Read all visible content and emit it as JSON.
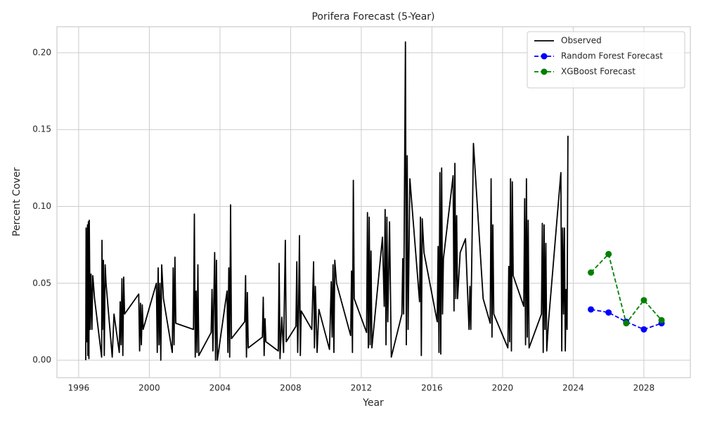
{
  "chart_data": {
    "type": "line",
    "title": "Porifera Forecast (5-Year)",
    "x_label": "Year",
    "y_label": "Percent Cover",
    "xlim": [
      1994.77,
      2030.63
    ],
    "xticks": [
      1996,
      2000,
      2004,
      2008,
      2012,
      2016,
      2020,
      2024,
      2028
    ],
    "ylim": [
      -0.0114,
      0.2169
    ],
    "yticks": [
      {
        "value": 0,
        "label": "0.00"
      },
      {
        "value": 0.05,
        "label": "0.05"
      },
      {
        "value": 0.1,
        "label": "0.10"
      },
      {
        "value": 0.15,
        "label": "0.15"
      },
      {
        "value": 0.2,
        "label": "0.20"
      }
    ],
    "grid": true,
    "legend": "upper right",
    "series": [
      {
        "name": "Observed",
        "color": "#000000",
        "style": "solid",
        "markers": false,
        "x": [
          1996.4,
          1996.42,
          1996.45,
          1996.5,
          1996.52,
          1996.55,
          1996.58,
          1996.6,
          1996.65,
          1996.7,
          1996.75,
          1996.8,
          1996.9,
          1997.3,
          1997.32,
          1997.35,
          1997.4,
          1997.45,
          1997.5,
          1997.55,
          1997.9,
          1998.0,
          1998.3,
          1998.35,
          1998.4,
          1998.45,
          1998.5,
          1998.55,
          1998.6,
          1999.4,
          1999.45,
          1999.5,
          1999.55,
          1999.6,
          1999.65,
          2000.4,
          2000.45,
          2000.5,
          2000.55,
          2000.6,
          2000.65,
          2000.7,
          2000.8,
          2001.3,
          2001.35,
          2001.4,
          2001.45,
          2001.5,
          2002.5,
          2002.55,
          2002.6,
          2002.65,
          2002.7,
          2002.75,
          2002.8,
          2003.5,
          2003.55,
          2003.6,
          2003.7,
          2003.75,
          2003.8,
          2003.85,
          2004.4,
          2004.45,
          2004.5,
          2004.55,
          2004.6,
          2004.65,
          2005.4,
          2005.45,
          2005.5,
          2005.55,
          2005.6,
          2006.4,
          2006.45,
          2006.5,
          2006.55,
          2006.6,
          2007.3,
          2007.35,
          2007.4,
          2007.5,
          2007.6,
          2007.7,
          2007.75,
          2008.3,
          2008.35,
          2008.4,
          2008.45,
          2008.5,
          2008.55,
          2008.6,
          2009.2,
          2009.3,
          2009.35,
          2009.4,
          2009.5,
          2009.6,
          2010.2,
          2010.3,
          2010.35,
          2010.4,
          2010.45,
          2010.5,
          2010.6,
          2011.4,
          2011.45,
          2011.5,
          2011.55,
          2011.6,
          2012.3,
          2012.35,
          2012.4,
          2012.45,
          2012.5,
          2012.55,
          2012.6,
          2013.2,
          2013.3,
          2013.35,
          2013.4,
          2013.45,
          2013.5,
          2013.6,
          2013.7,
          2014.3,
          2014.35,
          2014.4,
          2014.5,
          2014.55,
          2014.6,
          2014.65,
          2014.75,
          2015.3,
          2015.35,
          2015.4,
          2015.45,
          2015.55,
          2016.3,
          2016.35,
          2016.4,
          2016.45,
          2016.5,
          2016.55,
          2016.6,
          2016.65,
          2017.2,
          2017.25,
          2017.3,
          2017.35,
          2017.4,
          2017.45,
          2017.6,
          2017.9,
          2018.1,
          2018.15,
          2018.2,
          2018.35,
          2018.9,
          2019.3,
          2019.35,
          2019.4,
          2019.45,
          2019.5,
          2020.3,
          2020.35,
          2020.4,
          2020.45,
          2020.5,
          2020.55,
          2020.6,
          2021.2,
          2021.25,
          2021.3,
          2021.35,
          2021.4,
          2021.45,
          2021.5,
          2022.2,
          2022.25,
          2022.3,
          2022.35,
          2022.4,
          2022.45,
          2022.5,
          2022.6,
          2023.3,
          2023.35,
          2023.4,
          2023.45,
          2023.5,
          2023.55,
          2023.6,
          2023.65,
          2023.7
        ],
        "values": [
          0.0,
          0.086,
          0.012,
          0.088,
          0.003,
          0.09,
          0.001,
          0.091,
          0.02,
          0.056,
          0.02,
          0.055,
          0.04,
          0.002,
          0.078,
          0.02,
          0.065,
          0.003,
          0.062,
          0.05,
          0.002,
          0.03,
          0.005,
          0.038,
          0.01,
          0.053,
          0.003,
          0.054,
          0.03,
          0.043,
          0.006,
          0.037,
          0.01,
          0.036,
          0.02,
          0.05,
          0.005,
          0.06,
          0.01,
          0.05,
          0.0,
          0.062,
          0.04,
          0.005,
          0.06,
          0.01,
          0.067,
          0.024,
          0.02,
          0.095,
          0.002,
          0.045,
          0.005,
          0.062,
          0.003,
          0.018,
          0.046,
          0.006,
          0.07,
          0.0,
          0.065,
          0.0,
          0.045,
          0.005,
          0.06,
          0.002,
          0.101,
          0.014,
          0.025,
          0.055,
          0.002,
          0.044,
          0.008,
          0.015,
          0.041,
          0.003,
          0.027,
          0.012,
          0.006,
          0.063,
          0.001,
          0.028,
          0.005,
          0.078,
          0.012,
          0.022,
          0.064,
          0.005,
          0.032,
          0.081,
          0.003,
          0.032,
          0.02,
          0.064,
          0.008,
          0.048,
          0.005,
          0.033,
          0.007,
          0.051,
          0.015,
          0.062,
          0.005,
          0.065,
          0.05,
          0.016,
          0.058,
          0.005,
          0.117,
          0.04,
          0.018,
          0.096,
          0.008,
          0.093,
          0.01,
          0.071,
          0.008,
          0.08,
          0.035,
          0.098,
          0.01,
          0.093,
          0.025,
          0.09,
          0.002,
          0.03,
          0.066,
          0.03,
          0.207,
          0.01,
          0.133,
          0.02,
          0.118,
          0.038,
          0.093,
          0.003,
          0.092,
          0.07,
          0.025,
          0.074,
          0.005,
          0.122,
          0.004,
          0.125,
          0.03,
          0.066,
          0.12,
          0.032,
          0.128,
          0.04,
          0.094,
          0.04,
          0.07,
          0.079,
          0.02,
          0.048,
          0.02,
          0.141,
          0.04,
          0.024,
          0.118,
          0.015,
          0.088,
          0.03,
          0.008,
          0.061,
          0.012,
          0.118,
          0.006,
          0.116,
          0.055,
          0.035,
          0.105,
          0.01,
          0.118,
          0.015,
          0.091,
          0.008,
          0.03,
          0.089,
          0.005,
          0.088,
          0.02,
          0.076,
          0.006,
          0.025,
          0.122,
          0.006,
          0.086,
          0.03,
          0.086,
          0.006,
          0.046,
          0.02,
          0.146
        ]
      },
      {
        "name": "Random Forest Forecast",
        "color": "#0000ff",
        "style": "dashed",
        "markers": true,
        "x": [
          2025,
          2026,
          2027,
          2028,
          2029
        ],
        "values": [
          0.033,
          0.031,
          0.025,
          0.02,
          0.024
        ]
      },
      {
        "name": "XGBoost Forecast",
        "color": "#008000",
        "style": "dashed",
        "markers": true,
        "x": [
          2025,
          2026,
          2027,
          2028,
          2029
        ],
        "values": [
          0.057,
          0.069,
          0.024,
          0.039,
          0.026
        ]
      }
    ]
  }
}
